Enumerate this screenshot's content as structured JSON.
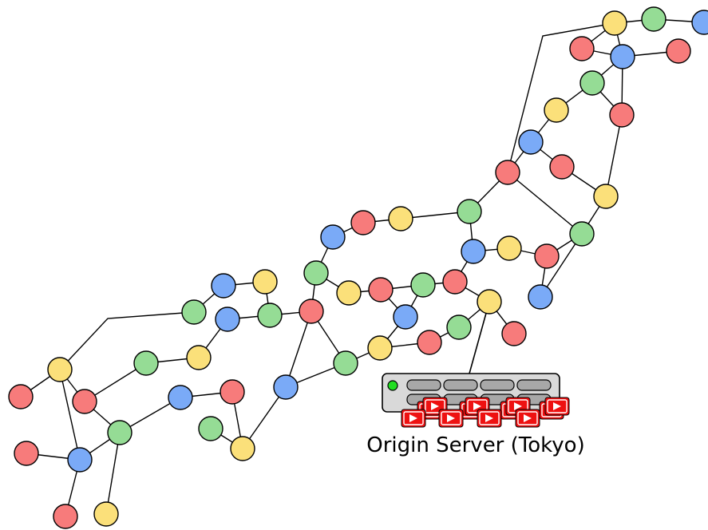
{
  "diagram": {
    "server_label": "Origin Server (Tokyo)",
    "colors": {
      "red": "#f77b7b",
      "blue": "#7aaaf7",
      "green": "#95dc95",
      "yellow": "#fbe07a",
      "edge": "#000000",
      "server_body": "#d9d9d9",
      "server_slot": "#a8a8a8",
      "server_led": "#22dd22",
      "video_tile": "#ee1111"
    },
    "icons": [
      "server-icon",
      "video-play-icon"
    ]
  }
}
